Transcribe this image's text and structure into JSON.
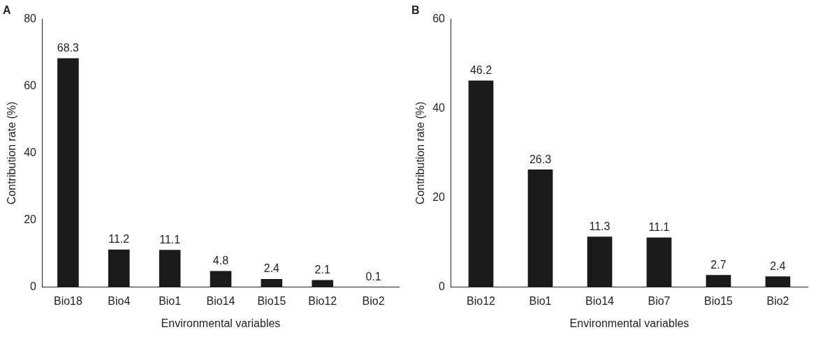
{
  "chart_data": [
    {
      "type": "bar",
      "title": "A",
      "xlabel": "Environmental variables",
      "ylabel": "Contribution rate (%)",
      "categories": [
        "Bio18",
        "Bio4",
        "Bio1",
        "Bio14",
        "Bio15",
        "Bio12",
        "Bio2"
      ],
      "values": [
        68.3,
        11.2,
        11.1,
        4.8,
        2.4,
        2.1,
        0.1
      ],
      "color": "#1a1a1a",
      "ylim": [
        0,
        80
      ],
      "yticks": [
        0,
        20,
        40,
        60,
        80
      ],
      "data_labels": true
    },
    {
      "type": "bar",
      "title": "B",
      "xlabel": "Environmental variables",
      "ylabel": "Contribution rate (%)",
      "categories": [
        "Bio12",
        "Bio1",
        "Bio14",
        "Bio7",
        "Bio15",
        "Bio2"
      ],
      "values": [
        46.2,
        26.3,
        11.3,
        11.1,
        2.7,
        2.4
      ],
      "color": "#1a1a1a",
      "ylim": [
        0,
        60
      ],
      "yticks": [
        0,
        20,
        40,
        60
      ],
      "data_labels": true
    }
  ]
}
